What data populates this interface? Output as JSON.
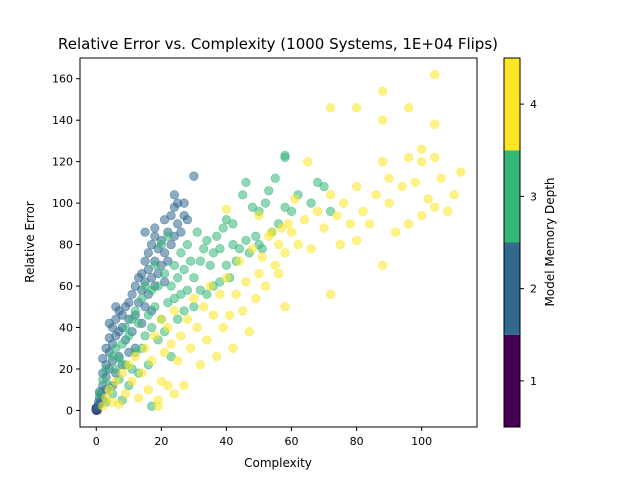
{
  "chart_data": {
    "type": "scatter",
    "title": "Relative Error vs. Complexity (1000 Systems, 1E+04 Flips)",
    "xlabel": "Complexity",
    "ylabel": "Relative Error",
    "xlim": [
      -5,
      117
    ],
    "ylim": [
      -8,
      170
    ],
    "xticks": [
      0,
      20,
      40,
      60,
      80,
      100
    ],
    "yticks": [
      0,
      20,
      40,
      60,
      80,
      100,
      120,
      140,
      160
    ],
    "colorbar": {
      "label": "Model Memory Depth",
      "range": [
        0.5,
        4.5
      ],
      "ticks": [
        1,
        2,
        3,
        4
      ],
      "colors": {
        "1": "#440154",
        "2": "#31688e",
        "3": "#35b779",
        "4": "#fde725"
      }
    },
    "marker_alpha": 0.55,
    "series": [
      {
        "depth": 1,
        "points": [
          [
            0,
            0
          ],
          [
            0,
            0.5
          ],
          [
            0,
            1
          ],
          [
            0,
            0.3
          ],
          [
            0.2,
            0.2
          ],
          [
            0,
            0.8
          ],
          [
            0.1,
            0.4
          ],
          [
            0,
            0.6
          ],
          [
            0.3,
            0.1
          ],
          [
            0,
            1.2
          ]
        ]
      },
      {
        "depth": 2,
        "points": [
          [
            0,
            0
          ],
          [
            0,
            1
          ],
          [
            0.5,
            2
          ],
          [
            0.7,
            4
          ],
          [
            1,
            3
          ],
          [
            1,
            6
          ],
          [
            1,
            9
          ],
          [
            1.5,
            8
          ],
          [
            2,
            12
          ],
          [
            2,
            18
          ],
          [
            2,
            25
          ],
          [
            2,
            5
          ],
          [
            3,
            16
          ],
          [
            3,
            22
          ],
          [
            3,
            30
          ],
          [
            3,
            10
          ],
          [
            4,
            20
          ],
          [
            4,
            28
          ],
          [
            4,
            35
          ],
          [
            4,
            42
          ],
          [
            5,
            24
          ],
          [
            5,
            32
          ],
          [
            5,
            40
          ],
          [
            5,
            12
          ],
          [
            6,
            36
          ],
          [
            6,
            44
          ],
          [
            6,
            50
          ],
          [
            6,
            18
          ],
          [
            7,
            26
          ],
          [
            7,
            38
          ],
          [
            7,
            48
          ],
          [
            8,
            22
          ],
          [
            8,
            40
          ],
          [
            8,
            46
          ],
          [
            9,
            34
          ],
          [
            9,
            50
          ],
          [
            10,
            28
          ],
          [
            10,
            44
          ],
          [
            10,
            52
          ],
          [
            11,
            38
          ],
          [
            11,
            56
          ],
          [
            12,
            46
          ],
          [
            12,
            60
          ],
          [
            12,
            30
          ],
          [
            13,
            52
          ],
          [
            13,
            64
          ],
          [
            14,
            42
          ],
          [
            14,
            58
          ],
          [
            14,
            66
          ],
          [
            15,
            50
          ],
          [
            15,
            62
          ],
          [
            15,
            72
          ],
          [
            15,
            86
          ],
          [
            16,
            56
          ],
          [
            16,
            68
          ],
          [
            16,
            76
          ],
          [
            17,
            48
          ],
          [
            17,
            64
          ],
          [
            17,
            80
          ],
          [
            18,
            60
          ],
          [
            18,
            72
          ],
          [
            18,
            84
          ],
          [
            18,
            88
          ],
          [
            19,
            66
          ],
          [
            19,
            78
          ],
          [
            20,
            70
          ],
          [
            20,
            82
          ],
          [
            21,
            62
          ],
          [
            21,
            76
          ],
          [
            21,
            92
          ],
          [
            22,
            72
          ],
          [
            22,
            86
          ],
          [
            23,
            80
          ],
          [
            23,
            94
          ],
          [
            24,
            98
          ],
          [
            24,
            84
          ],
          [
            24,
            104
          ],
          [
            25,
            90
          ],
          [
            25,
            100
          ],
          [
            26,
            86
          ],
          [
            27,
            100
          ],
          [
            27,
            94
          ],
          [
            30,
            113
          ],
          [
            28,
            92
          ]
        ]
      },
      {
        "depth": 3,
        "points": [
          [
            1,
            8
          ],
          [
            2,
            15
          ],
          [
            3,
            4
          ],
          [
            3,
            20
          ],
          [
            4,
            12
          ],
          [
            5,
            26
          ],
          [
            5,
            8
          ],
          [
            6,
            20
          ],
          [
            6,
            30
          ],
          [
            7,
            15
          ],
          [
            7,
            25
          ],
          [
            8,
            5
          ],
          [
            8,
            32
          ],
          [
            9,
            22
          ],
          [
            9,
            40
          ],
          [
            10,
            12
          ],
          [
            10,
            36
          ],
          [
            11,
            20
          ],
          [
            11,
            44
          ],
          [
            12,
            28
          ],
          [
            12,
            48
          ],
          [
            13,
            18
          ],
          [
            13,
            42
          ],
          [
            14,
            30
          ],
          [
            14,
            54
          ],
          [
            15,
            36
          ],
          [
            15,
            60
          ],
          [
            16,
            22
          ],
          [
            16,
            46
          ],
          [
            17,
            40
          ],
          [
            17,
            58
          ],
          [
            17,
            2
          ],
          [
            18,
            50
          ],
          [
            18,
            70
          ],
          [
            19,
            34
          ],
          [
            19,
            60
          ],
          [
            20,
            44
          ],
          [
            20,
            80
          ],
          [
            21,
            38
          ],
          [
            21,
            66
          ],
          [
            22,
            52
          ],
          [
            22,
            84
          ],
          [
            23,
            26
          ],
          [
            23,
            60
          ],
          [
            24,
            54
          ],
          [
            24,
            70
          ],
          [
            25,
            44
          ],
          [
            25,
            64
          ],
          [
            26,
            56
          ],
          [
            26,
            76
          ],
          [
            27,
            48
          ],
          [
            27,
            68
          ],
          [
            28,
            58
          ],
          [
            28,
            80
          ],
          [
            29,
            72
          ],
          [
            30,
            50
          ],
          [
            30,
            64
          ],
          [
            31,
            86
          ],
          [
            32,
            58
          ],
          [
            32,
            72
          ],
          [
            33,
            78
          ],
          [
            34,
            56
          ],
          [
            34,
            82
          ],
          [
            35,
            70
          ],
          [
            36,
            76
          ],
          [
            36,
            60
          ],
          [
            37,
            84
          ],
          [
            38,
            62
          ],
          [
            38,
            78
          ],
          [
            39,
            88
          ],
          [
            40,
            70
          ],
          [
            40,
            92
          ],
          [
            41,
            64
          ],
          [
            42,
            80
          ],
          [
            42,
            90
          ],
          [
            43,
            72
          ],
          [
            44,
            78
          ],
          [
            45,
            104
          ],
          [
            46,
            82
          ],
          [
            47,
            76
          ],
          [
            48,
            98
          ],
          [
            49,
            84
          ],
          [
            50,
            80
          ],
          [
            50,
            96
          ],
          [
            51,
            78
          ],
          [
            52,
            100
          ],
          [
            53,
            106
          ],
          [
            54,
            86
          ],
          [
            55,
            112
          ],
          [
            56,
            90
          ],
          [
            58,
            98
          ],
          [
            58,
            122
          ],
          [
            60,
            96
          ],
          [
            62,
            104
          ],
          [
            66,
            100
          ],
          [
            68,
            110
          ],
          [
            70,
            108
          ],
          [
            72,
            96
          ],
          [
            58,
            123
          ],
          [
            46,
            110
          ]
        ]
      },
      {
        "depth": 4,
        "points": [
          [
            2,
            2
          ],
          [
            3,
            6
          ],
          [
            4,
            10
          ],
          [
            5,
            4
          ],
          [
            6,
            14
          ],
          [
            7,
            3
          ],
          [
            8,
            18
          ],
          [
            9,
            8
          ],
          [
            10,
            22
          ],
          [
            11,
            14
          ],
          [
            12,
            26
          ],
          [
            13,
            6
          ],
          [
            14,
            18
          ],
          [
            15,
            30
          ],
          [
            16,
            10
          ],
          [
            17,
            24
          ],
          [
            18,
            36
          ],
          [
            19,
            5
          ],
          [
            19,
            2
          ],
          [
            20,
            44
          ],
          [
            20,
            14
          ],
          [
            21,
            28
          ],
          [
            22,
            12
          ],
          [
            22,
            40
          ],
          [
            23,
            32
          ],
          [
            24,
            8
          ],
          [
            24,
            48
          ],
          [
            25,
            24
          ],
          [
            26,
            36
          ],
          [
            27,
            12
          ],
          [
            28,
            44
          ],
          [
            29,
            30
          ],
          [
            30,
            54
          ],
          [
            31,
            40
          ],
          [
            32,
            22
          ],
          [
            33,
            50
          ],
          [
            34,
            34
          ],
          [
            35,
            60
          ],
          [
            36,
            46
          ],
          [
            37,
            26
          ],
          [
            38,
            56
          ],
          [
            39,
            40
          ],
          [
            40,
            64
          ],
          [
            40,
            97
          ],
          [
            41,
            46
          ],
          [
            42,
            30
          ],
          [
            43,
            56
          ],
          [
            44,
            72
          ],
          [
            45,
            48
          ],
          [
            46,
            62
          ],
          [
            47,
            38
          ],
          [
            48,
            78
          ],
          [
            49,
            54
          ],
          [
            50,
            66
          ],
          [
            50,
            94
          ],
          [
            51,
            74
          ],
          [
            52,
            60
          ],
          [
            53,
            84
          ],
          [
            54,
            86
          ],
          [
            55,
            70
          ],
          [
            56,
            80
          ],
          [
            57,
            88
          ],
          [
            58,
            76
          ],
          [
            58,
            50
          ],
          [
            59,
            90
          ],
          [
            60,
            86
          ],
          [
            61,
            102
          ],
          [
            62,
            80
          ],
          [
            64,
            92
          ],
          [
            65,
            120
          ],
          [
            66,
            78
          ],
          [
            68,
            96
          ],
          [
            70,
            88
          ],
          [
            72,
            104
          ],
          [
            72,
            146
          ],
          [
            74,
            94
          ],
          [
            75,
            80
          ],
          [
            76,
            100
          ],
          [
            78,
            90
          ],
          [
            80,
            108
          ],
          [
            80,
            146
          ],
          [
            80,
            82
          ],
          [
            82,
            96
          ],
          [
            84,
            90
          ],
          [
            86,
            104
          ],
          [
            88,
            70
          ],
          [
            88,
            120
          ],
          [
            88,
            140
          ],
          [
            88,
            154
          ],
          [
            90,
            112
          ],
          [
            90,
            100
          ],
          [
            92,
            86
          ],
          [
            94,
            108
          ],
          [
            96,
            90
          ],
          [
            96,
            122
          ],
          [
            96,
            146
          ],
          [
            98,
            110
          ],
          [
            100,
            94
          ],
          [
            100,
            120
          ],
          [
            100,
            126
          ],
          [
            102,
            102
          ],
          [
            104,
            98
          ],
          [
            104,
            122
          ],
          [
            104,
            138
          ],
          [
            104,
            162
          ],
          [
            106,
            112
          ],
          [
            108,
            96
          ],
          [
            110,
            104
          ],
          [
            112,
            115
          ],
          [
            72,
            56
          ],
          [
            56,
            66
          ]
        ]
      }
    ]
  }
}
